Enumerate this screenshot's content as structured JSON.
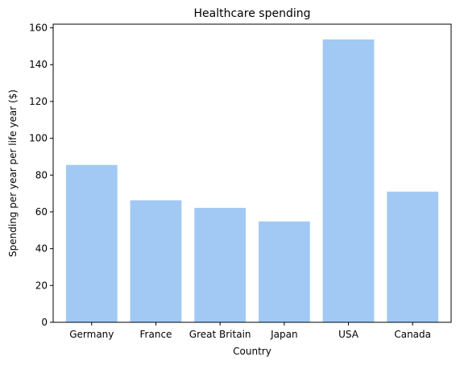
{
  "chart_data": {
    "type": "bar",
    "title": "Healthcare spending",
    "xlabel": "Country",
    "ylabel": "Spending per year per life year ($)",
    "categories": [
      "Germany",
      "France",
      "Great Britain",
      "Japan",
      "USA",
      "Canada"
    ],
    "values": [
      85.5,
      66.3,
      62.2,
      54.8,
      153.7,
      71.0
    ],
    "ylim": [
      0,
      162
    ],
    "yticks": [
      0,
      20,
      40,
      60,
      80,
      100,
      120,
      140,
      160
    ],
    "grid": false,
    "bar_color": "#a1c9f4"
  }
}
